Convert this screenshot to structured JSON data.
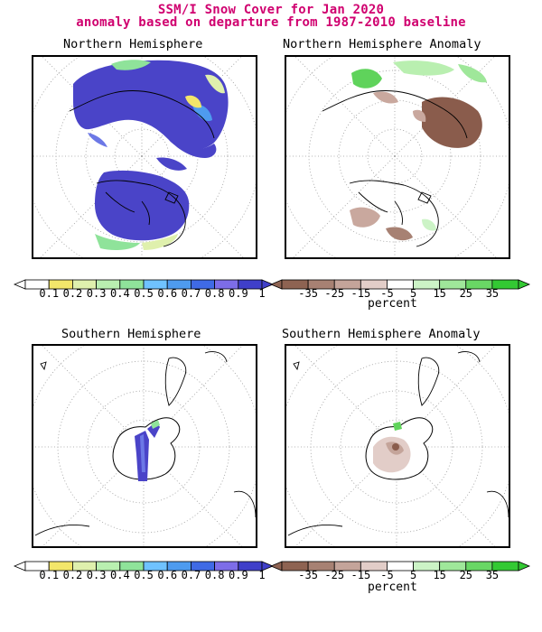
{
  "title_line1": "SSM/I Snow Cover for Jan 2020",
  "title_line2": "anomaly based on departure from 1987-2010 baseline",
  "panels": {
    "nh": {
      "title": "Northern Hemisphere"
    },
    "nh_anom": {
      "title": "Northern Hemisphere Anomaly"
    },
    "sh": {
      "title": "Southern Hemisphere"
    },
    "sh_anom": {
      "title": "Southern Hemisphere Anomaly"
    }
  },
  "scale_cover": {
    "labels": [
      "0.1",
      "0.2",
      "0.3",
      "0.4",
      "0.5",
      "0.6",
      "0.7",
      "0.8",
      "0.9",
      "1"
    ],
    "colors": [
      "#ffffff",
      "#f3e66a",
      "#dff0ad",
      "#b9efb0",
      "#8fe39a",
      "#6fc2ff",
      "#4e9bef",
      "#3f6ae5",
      "#7d6de8",
      "#3f3fc9"
    ]
  },
  "scale_anom": {
    "labels": [
      "-35",
      "-25",
      "-15",
      "-5",
      "5",
      "15",
      "25",
      "35"
    ],
    "colors": [
      "#8e6352",
      "#a78173",
      "#c4a49a",
      "#e2cdc8",
      "#ffffff",
      "#ccf3c6",
      "#9fe79a",
      "#69d765",
      "#33c933"
    ],
    "unit": "percent"
  },
  "colors": {
    "title": "#d0006f",
    "snow": "#4a44c8",
    "snow_edge": "#6c78e6",
    "anom_neg": "#8a5c4c",
    "anom_neg_light": "#c9a89e",
    "anom_pos": "#5fd35b"
  }
}
